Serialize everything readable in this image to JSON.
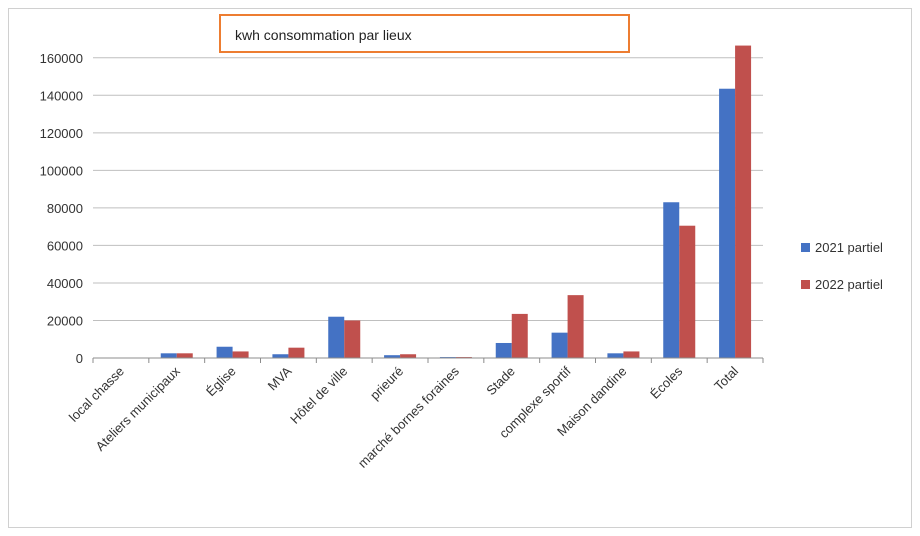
{
  "chart_data": {
    "type": "bar",
    "title": "kwh  consommation par lieux",
    "categories": [
      "local chasse",
      "Ateliers municipaux",
      "Église",
      "MVA",
      "Hôtel  de ville",
      "prieuré",
      "marché bornes foraines",
      "Stade",
      "complexe sportif",
      "Maison dandine",
      "Écoles",
      "Total"
    ],
    "series": [
      {
        "name": "2021 partiel",
        "color": "#4472C4",
        "values": [
          0,
          2500,
          6000,
          2000,
          22000,
          1500,
          500,
          8000,
          13500,
          2500,
          83000,
          143500
        ]
      },
      {
        "name": "2022 partiel",
        "color": "#C0504D",
        "values": [
          0,
          2500,
          3500,
          5500,
          20000,
          2000,
          500,
          23500,
          33500,
          3500,
          70500,
          166500
        ]
      }
    ],
    "ylim": [
      0,
      170000
    ],
    "yticks": [
      0,
      20000,
      40000,
      60000,
      80000,
      100000,
      120000,
      140000,
      160000
    ],
    "ytick_labels": [
      "0",
      "20000",
      "40000",
      "60000",
      "80000",
      "100000",
      "120000",
      "140000",
      "160000"
    ],
    "grid": true,
    "legend_position": "right"
  },
  "colors": {
    "title_border": "#ED7D31",
    "grid": "#bfbfbf",
    "axis": "#8c8c8c"
  }
}
